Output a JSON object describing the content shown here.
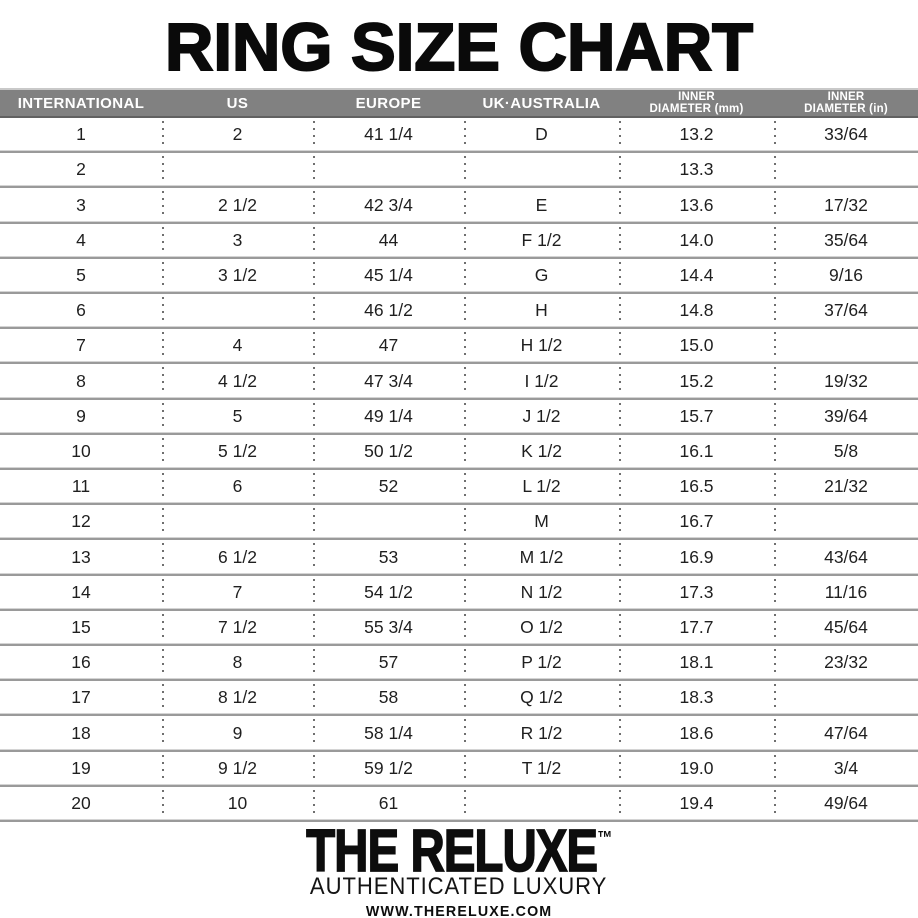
{
  "title": "RING SIZE CHART",
  "colors": {
    "header_bg": "#818181",
    "header_text": "#ffffff",
    "header_top_edge": "#c9c9c9",
    "header_bottom_edge": "#616161",
    "separator": "#9a9a9a",
    "separator_light": "#d4d4d4",
    "dots": "#6f6f6f",
    "text": "#1f1f1f"
  },
  "table": {
    "columns": [
      {
        "id": "international",
        "lines": [
          "INTERNATIONAL"
        ]
      },
      {
        "id": "us",
        "lines": [
          "US"
        ]
      },
      {
        "id": "europe",
        "lines": [
          "EUROPE"
        ]
      },
      {
        "id": "uk_australia",
        "lines": [
          "UK·AUSTRALIA"
        ]
      },
      {
        "id": "inner_diameter_mm",
        "lines": [
          "INNER",
          "DIAMETER (mm)"
        ]
      },
      {
        "id": "inner_diameter_in",
        "lines": [
          "INNER",
          "DIAMETER (in)"
        ]
      }
    ],
    "rows": [
      [
        "1",
        "2",
        "41 1/4",
        "D",
        "13.2",
        "33/64"
      ],
      [
        "2",
        "",
        "",
        "",
        "13.3",
        ""
      ],
      [
        "3",
        "2 1/2",
        "42 3/4",
        "E",
        "13.6",
        "17/32"
      ],
      [
        "4",
        "3",
        "44",
        "F 1/2",
        "14.0",
        "35/64"
      ],
      [
        "5",
        "3 1/2",
        "45 1/4",
        "G",
        "14.4",
        "9/16"
      ],
      [
        "6",
        "",
        "46 1/2",
        "H",
        "14.8",
        "37/64"
      ],
      [
        "7",
        "4",
        "47",
        "H 1/2",
        "15.0",
        ""
      ],
      [
        "8",
        "4 1/2",
        "47 3/4",
        "I 1/2",
        "15.2",
        "19/32"
      ],
      [
        "9",
        "5",
        "49 1/4",
        "J 1/2",
        "15.7",
        "39/64"
      ],
      [
        "10",
        "5 1/2",
        "50 1/2",
        "K 1/2",
        "16.1",
        "5/8"
      ],
      [
        "11",
        "6",
        "52",
        "L 1/2",
        "16.5",
        "21/32"
      ],
      [
        "12",
        "",
        "",
        "M",
        "16.7",
        ""
      ],
      [
        "13",
        "6 1/2",
        "53",
        "M 1/2",
        "16.9",
        "43/64"
      ],
      [
        "14",
        "7",
        "54 1/2",
        "N 1/2",
        "17.3",
        "11/16"
      ],
      [
        "15",
        "7 1/2",
        "55 3/4",
        "O 1/2",
        "17.7",
        "45/64"
      ],
      [
        "16",
        "8",
        "57",
        "P 1/2",
        "18.1",
        "23/32"
      ],
      [
        "17",
        "8 1/2",
        "58",
        "Q 1/2",
        "18.3",
        ""
      ],
      [
        "18",
        "9",
        "58 1/4",
        "R 1/2",
        "18.6",
        "47/64"
      ],
      [
        "19",
        "9 1/2",
        "59 1/2",
        "T 1/2",
        "19.0",
        "3/4"
      ],
      [
        "20",
        "10",
        "61",
        "",
        "19.4",
        "49/64"
      ]
    ]
  },
  "footer": {
    "brand": "THE RELUXE",
    "trademark": "™",
    "tagline": "AUTHENTICATED LUXURY",
    "website": "WWW.THERELUXE.COM"
  }
}
